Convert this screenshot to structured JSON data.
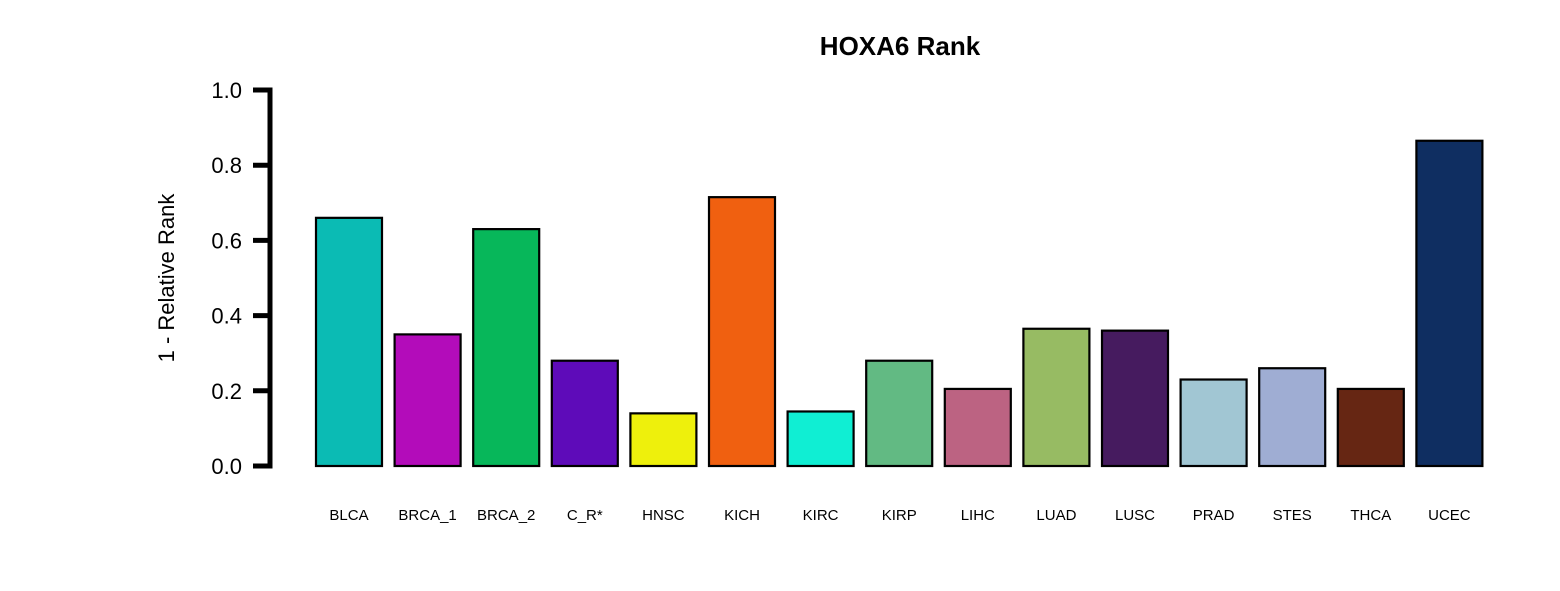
{
  "chart_data": {
    "type": "bar",
    "title": "HOXA6 Rank",
    "xlabel": "",
    "ylabel": "1 - Relative Rank",
    "ylim": [
      0,
      1
    ],
    "yticks": [
      "0.0",
      "0.2",
      "0.4",
      "0.6",
      "0.8",
      "1.0"
    ],
    "grid": false,
    "categories": [
      "BLCA",
      "BRCA_1",
      "BRCA_2",
      "C_R*",
      "HNSC",
      "KICH",
      "KIRC",
      "KIRP",
      "LIHC",
      "LUAD",
      "LUSC",
      "PRAD",
      "STES",
      "THCA",
      "UCEC"
    ],
    "values": [
      0.66,
      0.35,
      0.63,
      0.28,
      0.14,
      0.715,
      0.145,
      0.28,
      0.205,
      0.365,
      0.36,
      0.23,
      0.26,
      0.205,
      0.865
    ],
    "colors": [
      "#0BBBB4",
      "#B30CBA",
      "#07B75A",
      "#5E0BB9",
      "#EEF00C",
      "#F06010",
      "#10EED3",
      "#62BA83",
      "#BC6382",
      "#97BB63",
      "#461B5F",
      "#A1C6D3",
      "#9FADD3",
      "#662613",
      "#0F2E61"
    ]
  }
}
